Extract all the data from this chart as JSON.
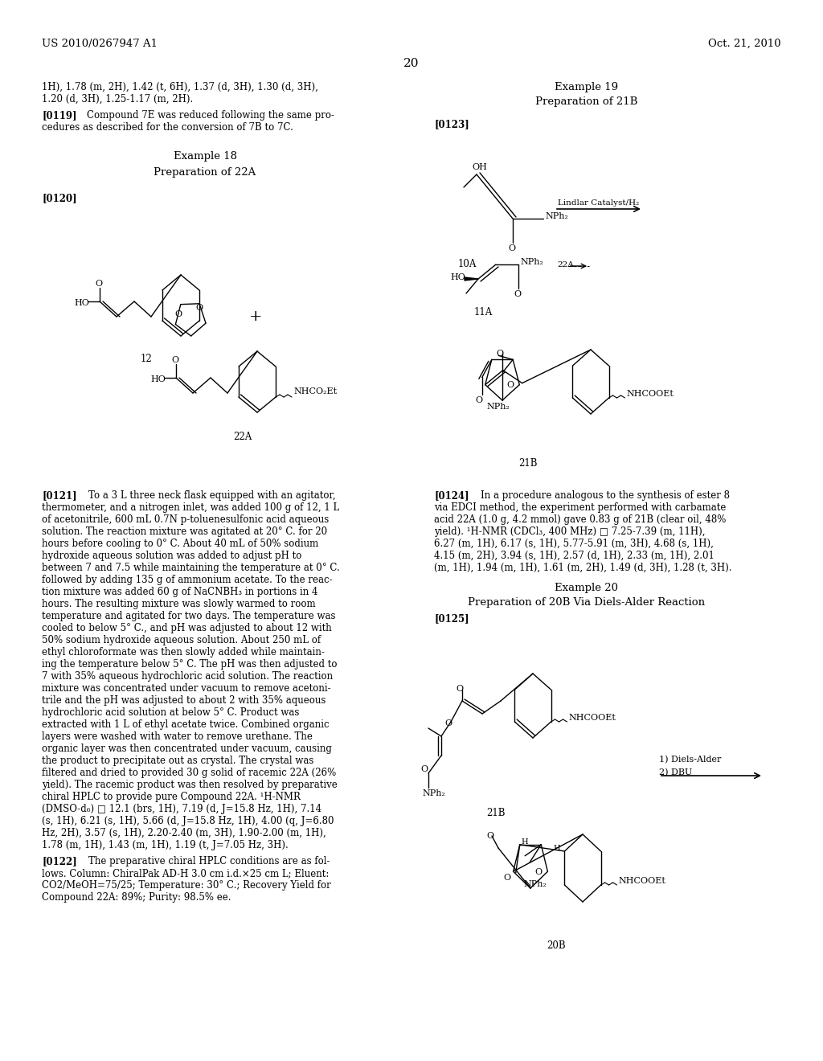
{
  "background": "#ffffff",
  "patent_left": "US 2010/0267947 A1",
  "patent_right": "Oct. 21, 2010",
  "page_num": "20"
}
